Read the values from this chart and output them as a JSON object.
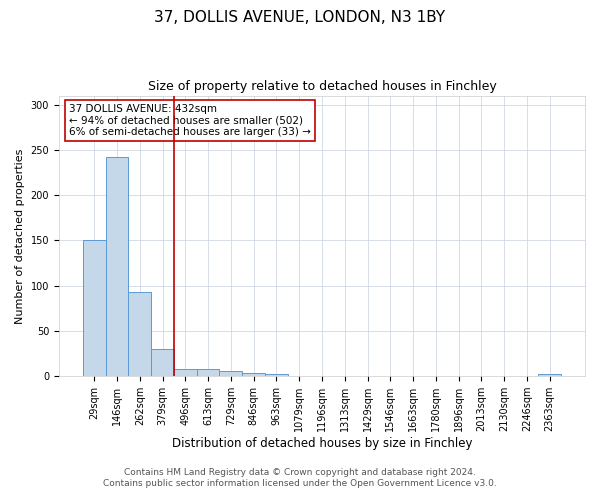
{
  "title1": "37, DOLLIS AVENUE, LONDON, N3 1BY",
  "title2": "Size of property relative to detached houses in Finchley",
  "xlabel": "Distribution of detached houses by size in Finchley",
  "ylabel": "Number of detached properties",
  "categories": [
    "29sqm",
    "146sqm",
    "262sqm",
    "379sqm",
    "496sqm",
    "613sqm",
    "729sqm",
    "846sqm",
    "963sqm",
    "1079sqm",
    "1196sqm",
    "1313sqm",
    "1429sqm",
    "1546sqm",
    "1663sqm",
    "1780sqm",
    "1896sqm",
    "2013sqm",
    "2130sqm",
    "2246sqm",
    "2363sqm"
  ],
  "values": [
    150,
    242,
    93,
    30,
    8,
    8,
    6,
    4,
    2,
    0,
    0,
    0,
    0,
    0,
    0,
    0,
    0,
    0,
    0,
    0,
    3
  ],
  "bar_color": "#c5d8ea",
  "bar_edge_color": "#5b9bd5",
  "vline_x": 3.5,
  "vline_color": "#c00000",
  "annotation_line1": "37 DOLLIS AVENUE: 432sqm",
  "annotation_line2": "← 94% of detached houses are smaller (502)",
  "annotation_line3": "6% of semi-detached houses are larger (33) →",
  "annotation_box_color": "#ffffff",
  "annotation_box_edge": "#c00000",
  "ylim": [
    0,
    310
  ],
  "yticks": [
    0,
    50,
    100,
    150,
    200,
    250,
    300
  ],
  "footer1": "Contains HM Land Registry data © Crown copyright and database right 2024.",
  "footer2": "Contains public sector information licensed under the Open Government Licence v3.0.",
  "bg_color": "#ffffff",
  "grid_color": "#d0d8e4",
  "title1_fontsize": 11,
  "title2_fontsize": 9,
  "xlabel_fontsize": 8.5,
  "ylabel_fontsize": 8,
  "tick_fontsize": 7,
  "annotation_fontsize": 7.5,
  "footer_fontsize": 6.5
}
